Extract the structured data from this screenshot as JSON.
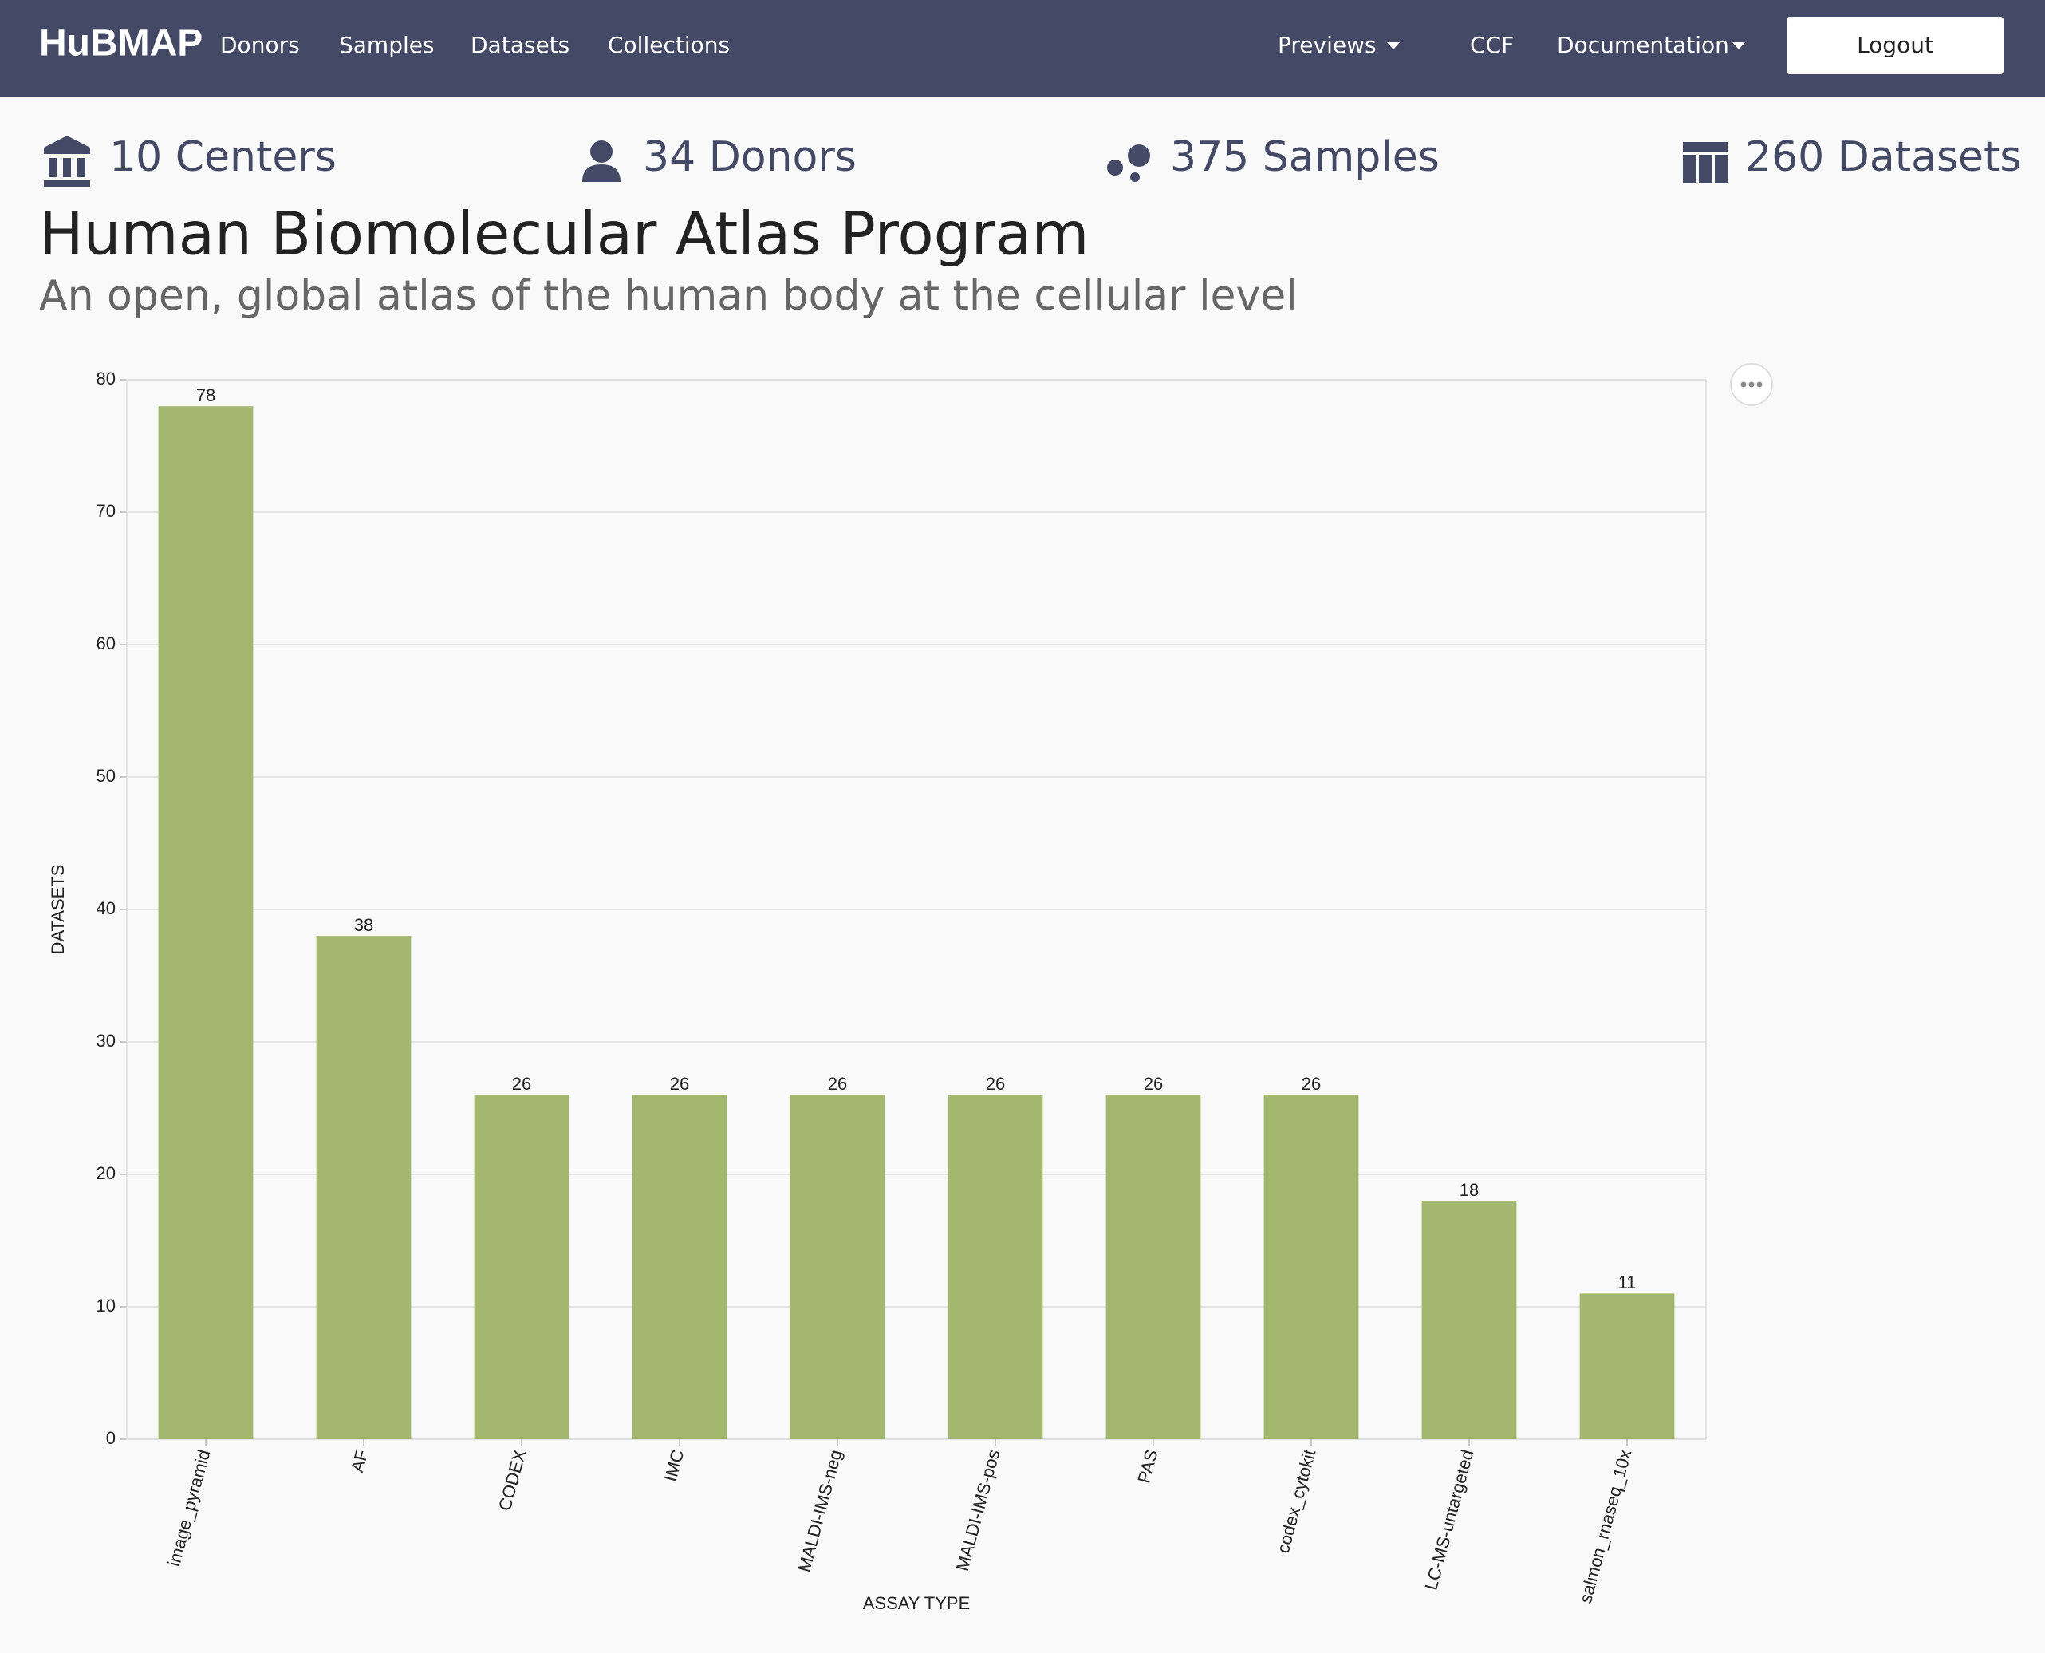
{
  "header": {
    "logo": "HuBMAP",
    "nav_left": [
      "Donors",
      "Samples",
      "Datasets",
      "Collections"
    ],
    "nav_right": [
      "Previews",
      "CCF",
      "Documentation"
    ],
    "button": "Logout"
  },
  "stats": [
    "10 Centers",
    "34 Donors",
    "375 Samples",
    "260 Datasets"
  ],
  "title": "Human Biomolecular Atlas Program",
  "subtitle": "An open, global atlas of the human body at the cellular level",
  "chart_data": {
    "type": "bar",
    "x_label": "ASSAY TYPE",
    "y_label": "DATASETS",
    "categories": [
      "image_pyramid",
      "AF",
      "CODEX",
      "IMC",
      "MALDI-IMS-neg",
      "MALDI-IMS-pos",
      "PAS",
      "codex_cytokit",
      "LC-MS-untargeted",
      "salmon_rnaseq_10x"
    ],
    "values": [
      78,
      38,
      26,
      26,
      26,
      26,
      26,
      26,
      18,
      11
    ],
    "color": "#a3b86e",
    "ylim": [
      0,
      80
    ],
    "yticks": [
      0,
      10,
      20,
      30,
      40,
      50,
      60,
      70,
      80
    ],
    "grid": true
  }
}
